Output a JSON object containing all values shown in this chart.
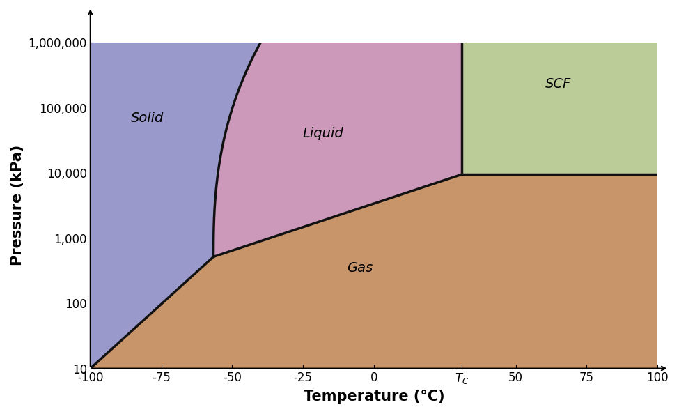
{
  "xlabel": "Temperature (°C)",
  "ylabel": "Pressure (kPa)",
  "xlim": [
    -100,
    100
  ],
  "ylim": [
    10,
    1000000
  ],
  "color_gas": "#C8956B",
  "color_solid": "#9999CC",
  "color_liquid": "#CC99BB",
  "color_scf": "#BBCC99",
  "triple_T": -56.6,
  "triple_P": 517,
  "critical_T": 31.0,
  "critical_P": 9500,
  "line_color": "#111111",
  "line_width": 2.5,
  "label_fontsize": 14,
  "axis_label_fontsize": 15,
  "tick_fontsize": 12
}
